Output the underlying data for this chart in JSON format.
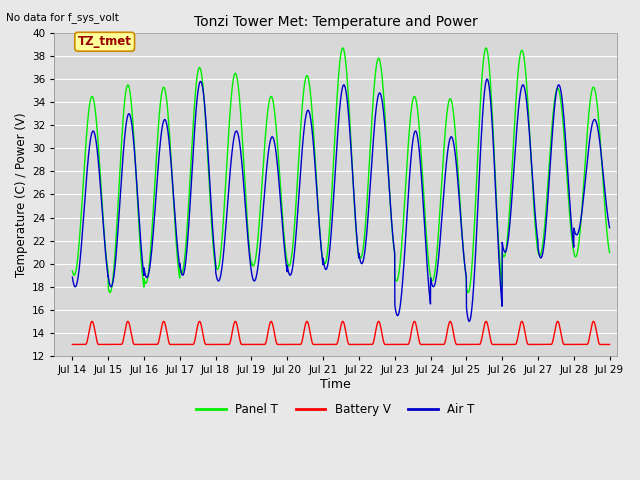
{
  "title": "Tonzi Tower Met: Temperature and Power",
  "top_left_text": "No data for f_sys_volt",
  "annotation_text": "TZ_tmet",
  "ylabel": "Temperature (C) / Power (V)",
  "xlabel": "Time",
  "xlim": [
    13.5,
    29.2
  ],
  "ylim": [
    12,
    40
  ],
  "yticks": [
    12,
    14,
    16,
    18,
    20,
    22,
    24,
    26,
    28,
    30,
    32,
    34,
    36,
    38,
    40
  ],
  "xtick_labels": [
    "Jul 14",
    "Jul 15",
    "Jul 16",
    "Jul 17",
    "Jul 18",
    "Jul 19",
    "Jul 20",
    "Jul 21",
    "Jul 22",
    "Jul 23",
    "Jul 24",
    "Jul 25",
    "Jul 26",
    "Jul 27",
    "Jul 28",
    "Jul 29"
  ],
  "xtick_positions": [
    14,
    15,
    16,
    17,
    18,
    19,
    20,
    21,
    22,
    23,
    24,
    25,
    26,
    27,
    28,
    29
  ],
  "panel_color": "#00ee00",
  "battery_color": "#ff0000",
  "air_color": "#0000cc",
  "plot_bg_color": "#d8d8d8",
  "fig_bg_color": "#e8e8e8",
  "grid_color": "#ffffff",
  "legend_labels": [
    "Panel T",
    "Battery V",
    "Air T"
  ],
  "panel_peaks": [
    34.5,
    35.5,
    35.3,
    37.0,
    36.5,
    34.5,
    36.3,
    38.7,
    37.8,
    34.5,
    34.3,
    38.7,
    38.5,
    35.2,
    35.3
  ],
  "panel_lows": [
    19.0,
    17.5,
    18.3,
    19.2,
    19.5,
    19.8,
    19.8,
    20.0,
    20.5,
    18.5,
    18.5,
    17.5,
    20.6,
    20.7,
    20.6
  ],
  "air_peaks": [
    31.5,
    33.0,
    32.5,
    35.8,
    31.5,
    31.0,
    33.3,
    35.5,
    34.8,
    31.5,
    31.0,
    36.0,
    35.5,
    35.5,
    32.5
  ],
  "air_lows": [
    18.0,
    18.0,
    18.8,
    19.0,
    18.5,
    18.5,
    19.0,
    19.5,
    20.0,
    15.5,
    18.0,
    15.0,
    21.0,
    20.5,
    22.5
  ],
  "batt_base": 13.0,
  "batt_peak": 15.0,
  "panel_peak_phase": 0.55,
  "air_peak_phase": 0.58
}
